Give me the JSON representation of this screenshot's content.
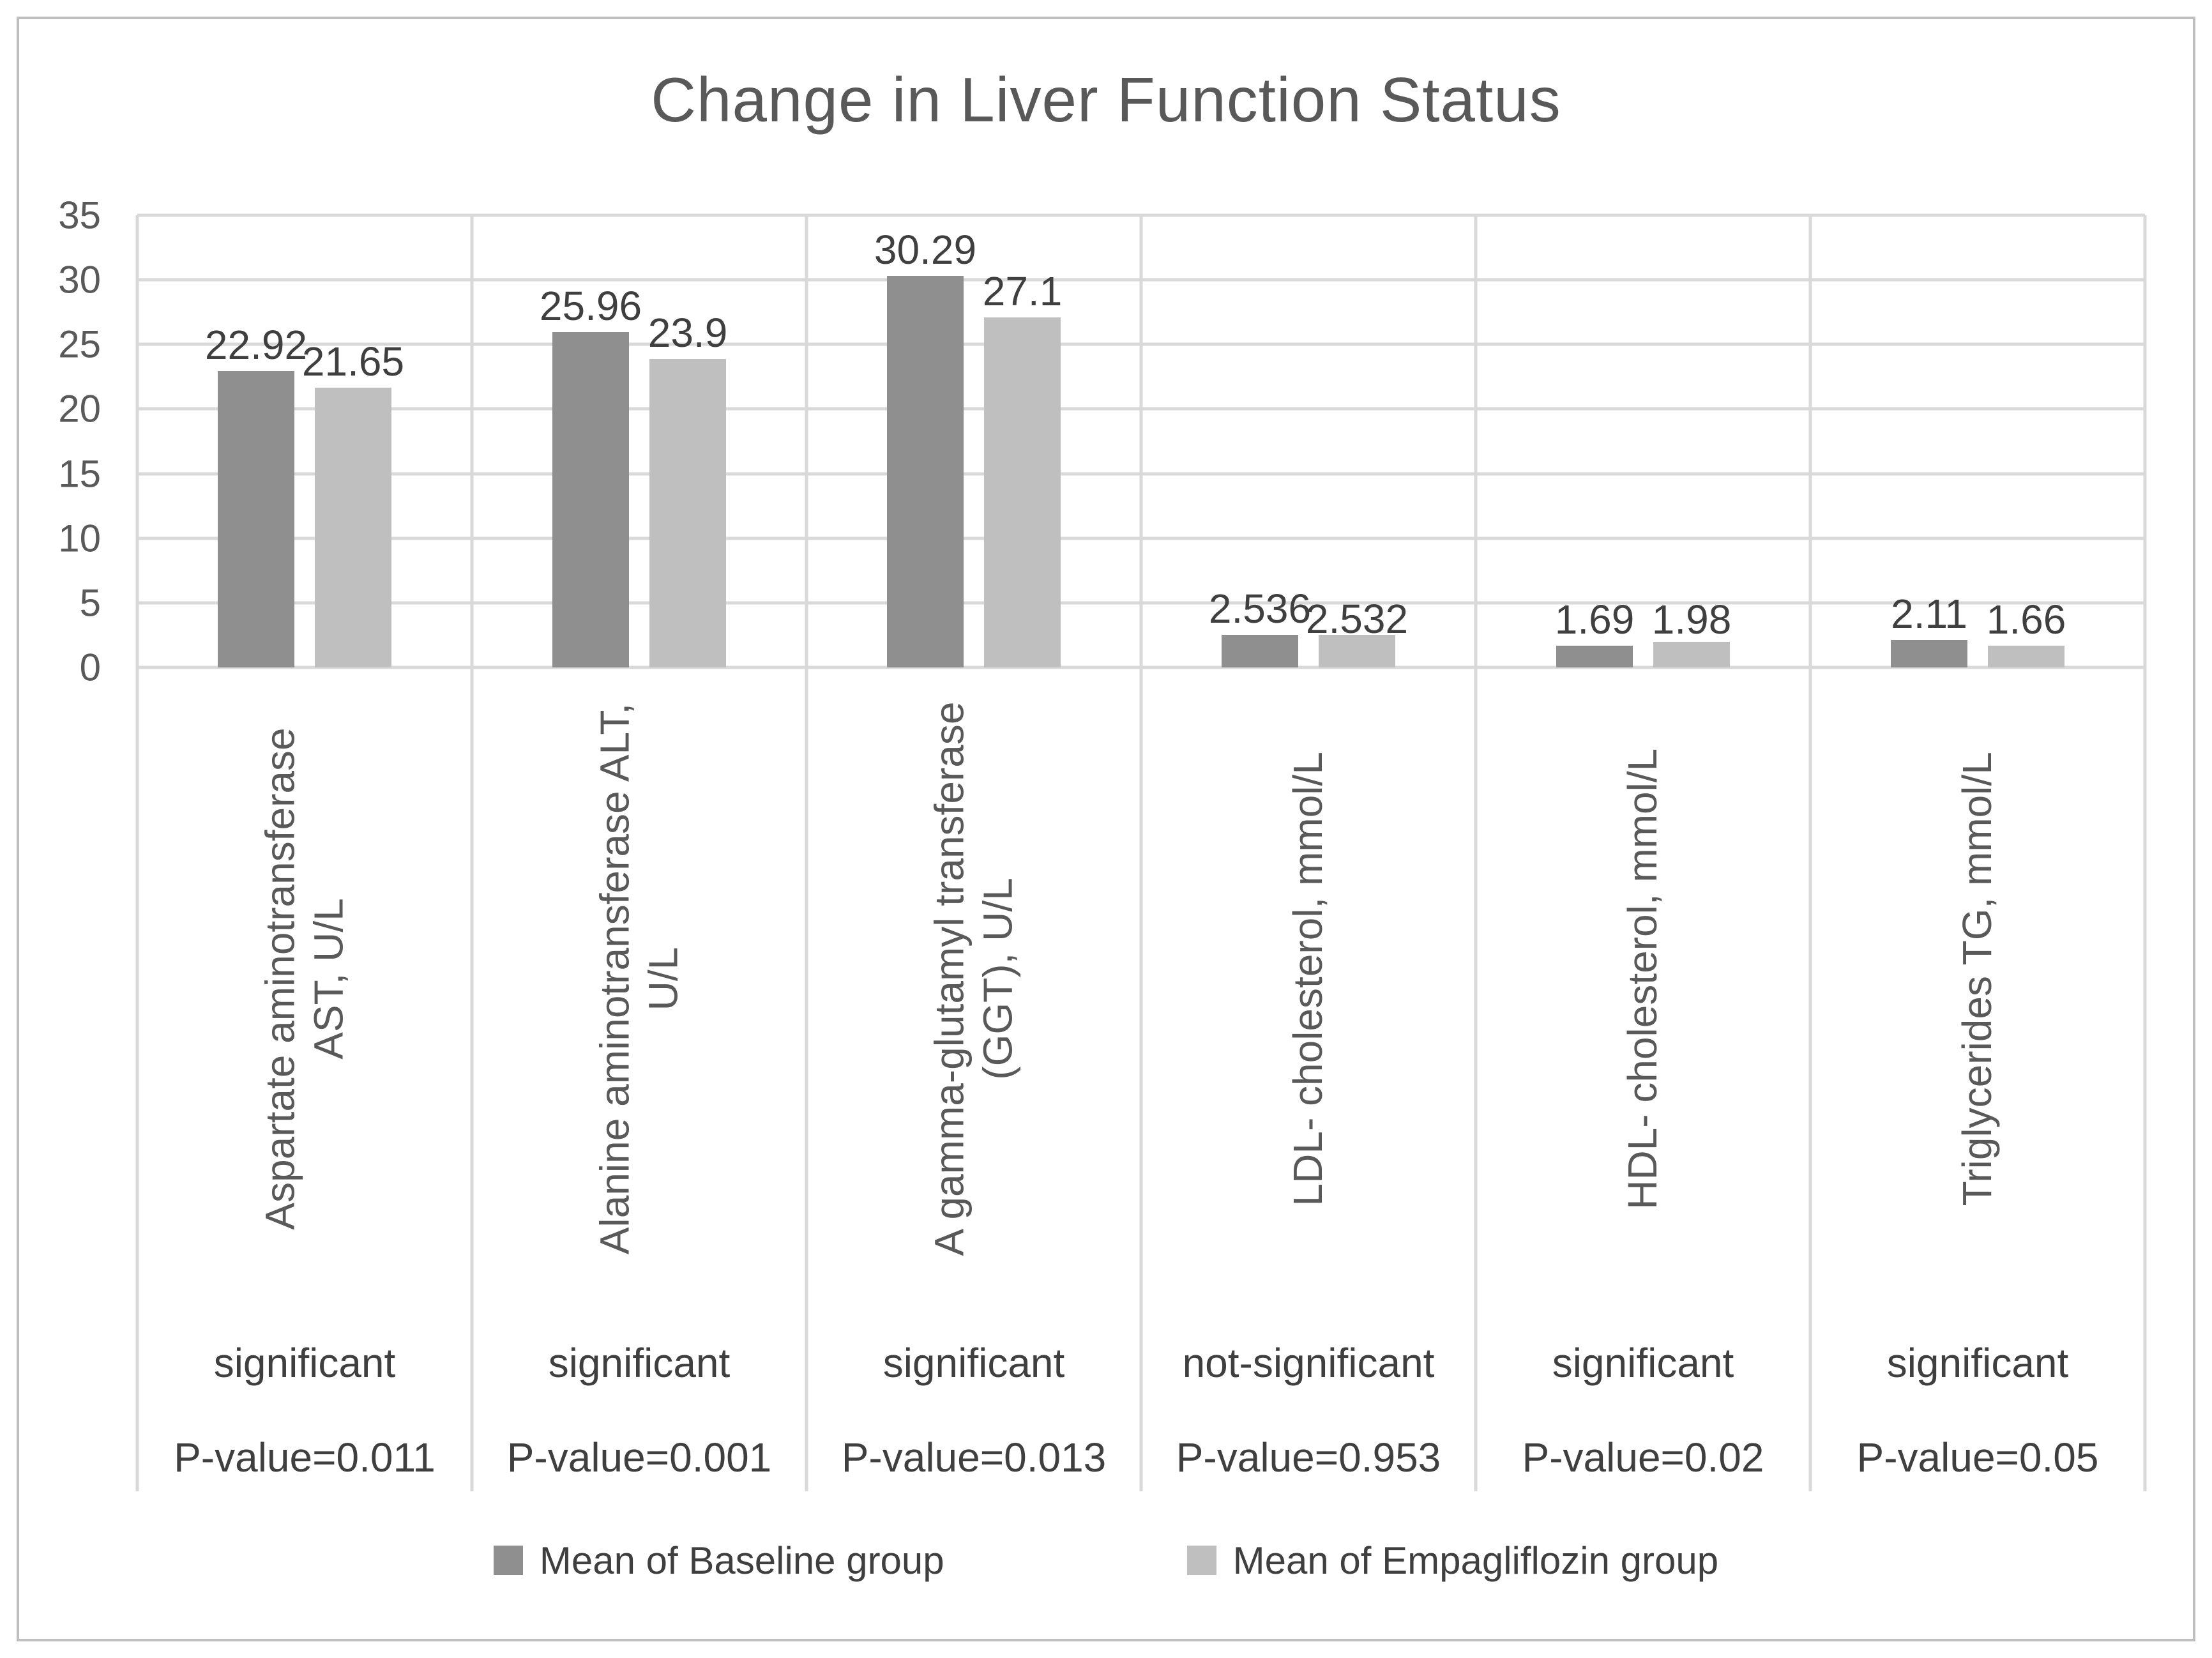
{
  "title": "Change in Liver Function Status",
  "chart_data": {
    "type": "bar",
    "title": "Change in Liver Function Status",
    "categories": [
      {
        "label_lines": [
          "Aspartate aminotransferase",
          "AST, U/L"
        ],
        "significance": "significant",
        "p_value": "P-value=0.011"
      },
      {
        "label_lines": [
          "Alanine aminotransferase ALT,",
          "U/L"
        ],
        "significance": "significant",
        "p_value": "P-value=0.001"
      },
      {
        "label_lines": [
          "A gamma-glutamyl transferase",
          "(GGT), U/L"
        ],
        "significance": "significant",
        "p_value": "P-value=0.013"
      },
      {
        "label_lines": [
          "LDL- cholesterol, mmol/L"
        ],
        "significance": "not-significant",
        "p_value": "P-value=0.953"
      },
      {
        "label_lines": [
          "HDL- cholesterol, mmol/L"
        ],
        "significance": "significant",
        "p_value": "P-value=0.02"
      },
      {
        "label_lines": [
          "Triglycerides TG, mmol/L"
        ],
        "significance": "significant",
        "p_value": "P-value=0.05"
      }
    ],
    "series": [
      {
        "name": "Mean of Baseline group",
        "color": "#8f8f8f",
        "values": [
          22.92,
          25.96,
          30.29,
          2.536,
          1.69,
          2.11
        ],
        "labels": [
          "22.92",
          "25.96",
          "30.29",
          "2.536",
          "1.69",
          "2.11"
        ]
      },
      {
        "name": "Mean of Empagliflozin group",
        "color": "#bfbfbf",
        "values": [
          21.65,
          23.9,
          27.1,
          2.532,
          1.98,
          1.66
        ],
        "labels": [
          "21.65",
          "23.9",
          "27.1",
          "2.532",
          "1.98",
          "1.66"
        ]
      }
    ],
    "y_axis": {
      "min": 0,
      "max": 35,
      "step": 5,
      "tick_labels": [
        "0",
        "5",
        "10",
        "15",
        "20",
        "25",
        "30",
        "35"
      ]
    },
    "grid": true,
    "legend_position": "bottom",
    "colors": {
      "gridline": "#d9d9d9",
      "axis_text": "#595959",
      "data_label_text": "#3f3f3f"
    }
  }
}
